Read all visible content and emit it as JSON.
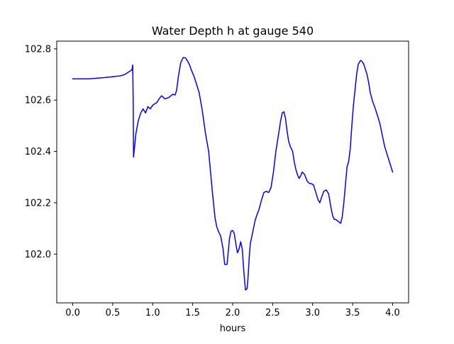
{
  "chart_data": {
    "type": "line",
    "title": "Water Depth h at gauge 540",
    "xlabel": "hours",
    "ylabel": "",
    "xlim": [
      -0.2,
      4.2
    ],
    "ylim": [
      101.81,
      102.83
    ],
    "xticks": [
      0.0,
      0.5,
      1.0,
      1.5,
      2.0,
      2.5,
      3.0,
      3.5,
      4.0
    ],
    "xtick_labels": [
      "0.0",
      "0.5",
      "1.0",
      "1.5",
      "2.0",
      "2.5",
      "3.0",
      "3.5",
      "4.0"
    ],
    "yticks": [
      102.0,
      102.2,
      102.4,
      102.6,
      102.8
    ],
    "ytick_labels": [
      "102.0",
      "102.2",
      "102.4",
      "102.6",
      "102.8"
    ],
    "grid": false,
    "series": [
      {
        "color": "#0000ff",
        "x": [
          0.0,
          0.2,
          0.4,
          0.6,
          0.65,
          0.7,
          0.74,
          0.75,
          0.756,
          0.76,
          0.79,
          0.82,
          0.85,
          0.88,
          0.91,
          0.94,
          0.97,
          1.0,
          1.02,
          1.05,
          1.08,
          1.11,
          1.13,
          1.15,
          1.17,
          1.2,
          1.25,
          1.28,
          1.3,
          1.32,
          1.35,
          1.38,
          1.41,
          1.44,
          1.46,
          1.48,
          1.52,
          1.55,
          1.58,
          1.62,
          1.66,
          1.7,
          1.72,
          1.75,
          1.78,
          1.8,
          1.82,
          1.85,
          1.88,
          1.9,
          1.93,
          1.96,
          1.98,
          2.0,
          2.02,
          2.04,
          2.06,
          2.08,
          2.1,
          2.12,
          2.14,
          2.16,
          2.18,
          2.19,
          2.2,
          2.21,
          2.22,
          2.24,
          2.26,
          2.28,
          2.3,
          2.33,
          2.36,
          2.39,
          2.42,
          2.45,
          2.48,
          2.51,
          2.54,
          2.57,
          2.6,
          2.62,
          2.64,
          2.66,
          2.68,
          2.7,
          2.72,
          2.75,
          2.77,
          2.79,
          2.81,
          2.83,
          2.85,
          2.87,
          2.9,
          2.93,
          2.96,
          2.98,
          3.01,
          3.03,
          3.05,
          3.07,
          3.09,
          3.11,
          3.14,
          3.17,
          3.2,
          3.23,
          3.25,
          3.27,
          3.29,
          3.31,
          3.33,
          3.35,
          3.37,
          3.39,
          3.41,
          3.43,
          3.45,
          3.47,
          3.49,
          3.51,
          3.53,
          3.55,
          3.57,
          3.6,
          3.62,
          3.64,
          3.66,
          3.68,
          3.7,
          3.72,
          3.75,
          3.78,
          3.81,
          3.84,
          3.86,
          3.88,
          3.9,
          3.92,
          3.94,
          3.96,
          3.98,
          4.0
        ],
        "y": [
          102.683,
          102.683,
          102.688,
          102.695,
          102.7,
          102.71,
          102.718,
          102.737,
          102.6,
          102.378,
          102.47,
          102.52,
          102.55,
          102.566,
          102.55,
          102.575,
          102.566,
          102.58,
          102.585,
          102.59,
          102.605,
          102.617,
          102.612,
          102.605,
          102.607,
          102.61,
          102.623,
          102.62,
          102.64,
          102.69,
          102.745,
          102.766,
          102.765,
          102.75,
          102.738,
          102.72,
          102.69,
          102.66,
          102.63,
          102.56,
          102.47,
          102.4,
          102.33,
          102.23,
          102.14,
          102.108,
          102.09,
          102.07,
          102.02,
          101.96,
          101.96,
          102.06,
          102.09,
          102.092,
          102.08,
          102.04,
          102.005,
          102.02,
          102.048,
          102.02,
          101.93,
          101.86,
          101.865,
          101.9,
          101.95,
          102.0,
          102.04,
          102.07,
          102.1,
          102.13,
          102.15,
          102.175,
          102.21,
          102.24,
          102.245,
          102.24,
          102.26,
          102.32,
          102.4,
          102.46,
          102.52,
          102.55,
          102.555,
          102.53,
          102.48,
          102.44,
          102.42,
          102.4,
          102.36,
          102.33,
          102.31,
          102.295,
          102.305,
          102.32,
          102.31,
          102.285,
          102.275,
          102.275,
          102.27,
          102.25,
          102.23,
          102.21,
          102.2,
          102.22,
          102.245,
          102.25,
          102.235,
          102.18,
          102.15,
          102.135,
          102.135,
          102.13,
          102.125,
          102.12,
          102.145,
          102.2,
          102.27,
          102.34,
          102.36,
          102.41,
          102.5,
          102.58,
          102.64,
          102.7,
          102.74,
          102.755,
          102.75,
          102.74,
          102.72,
          102.7,
          102.67,
          102.63,
          102.595,
          102.57,
          102.54,
          102.51,
          102.48,
          102.45,
          102.42,
          102.4,
          102.38,
          102.36,
          102.34,
          102.32
        ]
      }
    ]
  }
}
